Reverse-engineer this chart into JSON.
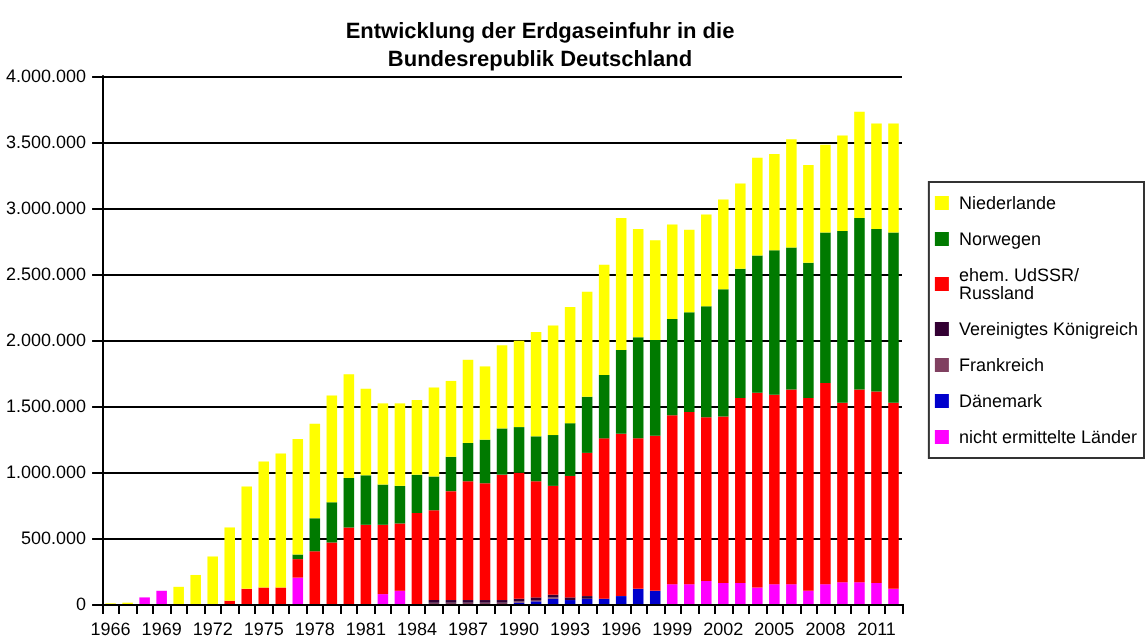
{
  "chart_data": {
    "type": "bar",
    "stacked": true,
    "title": "Entwicklung der Erdgaseinfuhr in die\nBundesrepublik Deutschland",
    "categories": [
      "1966",
      null,
      null,
      "1969",
      null,
      null,
      "1972",
      null,
      null,
      "1975",
      null,
      null,
      "1978",
      null,
      null,
      "1981",
      null,
      null,
      "1984",
      null,
      null,
      "1987",
      null,
      null,
      "1990",
      null,
      null,
      "1993",
      null,
      null,
      "1996",
      null,
      null,
      "1999",
      null,
      null,
      "2002",
      null,
      null,
      "2005",
      null,
      null,
      "2008",
      null,
      null,
      "2011",
      null
    ],
    "series": [
      {
        "name": "nicht ermittelte Länder",
        "color": "#ff00ff",
        "values": [
          0,
          0,
          50000,
          100000,
          0,
          0,
          0,
          0,
          0,
          0,
          0,
          200000,
          0,
          0,
          0,
          0,
          75000,
          100000,
          0,
          0,
          0,
          0,
          0,
          0,
          0,
          0,
          0,
          0,
          0,
          0,
          0,
          0,
          0,
          150000,
          150000,
          175000,
          160000,
          160000,
          125000,
          150000,
          150000,
          100000,
          150000,
          165000,
          165000,
          160000,
          115000
        ]
      },
      {
        "name": "Dänemark",
        "color": "#0000cc",
        "values": [
          0,
          0,
          0,
          0,
          0,
          0,
          0,
          0,
          0,
          0,
          0,
          0,
          0,
          0,
          0,
          0,
          0,
          0,
          0,
          0,
          0,
          0,
          0,
          0,
          10000,
          20000,
          40000,
          30000,
          40000,
          40000,
          60000,
          115000,
          100000,
          0,
          0,
          0,
          0,
          0,
          0,
          0,
          0,
          0,
          0,
          0,
          0,
          0,
          0
        ]
      },
      {
        "name": "Frankreich",
        "color": "#804060",
        "values": [
          0,
          0,
          0,
          0,
          0,
          0,
          0,
          0,
          0,
          0,
          0,
          0,
          0,
          0,
          0,
          0,
          0,
          0,
          0,
          10000,
          10000,
          10000,
          10000,
          10000,
          10000,
          10000,
          10000,
          0,
          0,
          0,
          0,
          0,
          0,
          0,
          0,
          0,
          0,
          0,
          0,
          0,
          0,
          0,
          0,
          0,
          0,
          0,
          0
        ]
      },
      {
        "name": "Vereinigtes Königreich",
        "color": "#330033",
        "values": [
          0,
          0,
          0,
          0,
          0,
          0,
          0,
          0,
          0,
          0,
          0,
          0,
          0,
          0,
          0,
          0,
          0,
          0,
          0,
          20000,
          20000,
          20000,
          20000,
          20000,
          20000,
          20000,
          20000,
          20000,
          20000,
          0,
          0,
          0,
          0,
          0,
          0,
          0,
          0,
          0,
          0,
          0,
          0,
          0,
          0,
          0,
          0,
          0,
          0
        ]
      },
      {
        "name": "ehem. UdSSR/\nRussland",
        "color": "#ff0000",
        "values": [
          0,
          0,
          0,
          0,
          0,
          0,
          0,
          25000,
          115000,
          125000,
          125000,
          140000,
          400000,
          465000,
          580000,
          600000,
          525000,
          510000,
          690000,
          680000,
          825000,
          900000,
          885000,
          950000,
          955000,
          880000,
          825000,
          920000,
          1085000,
          1215000,
          1230000,
          1140000,
          1175000,
          1280000,
          1305000,
          1240000,
          1260000,
          1400000,
          1475000,
          1435000,
          1475000,
          1460000,
          1525000,
          1360000,
          1460000,
          1450000,
          1410000
        ]
      },
      {
        "name": "Norwegen",
        "color": "#007a00",
        "values": [
          0,
          0,
          0,
          0,
          0,
          0,
          0,
          0,
          0,
          0,
          0,
          35000,
          250000,
          305000,
          375000,
          375000,
          305000,
          285000,
          290000,
          255000,
          260000,
          290000,
          330000,
          350000,
          345000,
          340000,
          385000,
          400000,
          425000,
          480000,
          635000,
          765000,
          725000,
          730000,
          755000,
          840000,
          965000,
          980000,
          1040000,
          1095000,
          1075000,
          1025000,
          1140000,
          1300000,
          1300000,
          1230000,
          1290000
        ]
      },
      {
        "name": "Niederlande",
        "color": "#ffff00",
        "values": [
          5000,
          10000,
          0,
          0,
          130000,
          220000,
          360000,
          555000,
          775000,
          955000,
          1015000,
          875000,
          715000,
          810000,
          785000,
          655000,
          615000,
          625000,
          565000,
          675000,
          575000,
          630000,
          555000,
          630000,
          655000,
          790000,
          830000,
          880000,
          795000,
          835000,
          1000000,
          820000,
          755000,
          715000,
          625000,
          695000,
          680000,
          645000,
          740000,
          730000,
          820000,
          740000,
          665000,
          725000,
          805000,
          800000,
          825000
        ]
      }
    ],
    "ylim": [
      0,
      4000000
    ],
    "yticks": [
      {
        "value": 0,
        "label": "0"
      },
      {
        "value": 500000,
        "label": "500.000"
      },
      {
        "value": 1000000,
        "label": "1.000.000"
      },
      {
        "value": 1500000,
        "label": "1.500.000"
      },
      {
        "value": 2000000,
        "label": "2.000.000"
      },
      {
        "value": 2500000,
        "label": "2.500.000"
      },
      {
        "value": 3000000,
        "label": "3.000.000"
      },
      {
        "value": 3500000,
        "label": "3.500.000"
      },
      {
        "value": 4000000,
        "label": "4.000.000"
      }
    ],
    "grid": "y",
    "legend": "right"
  }
}
